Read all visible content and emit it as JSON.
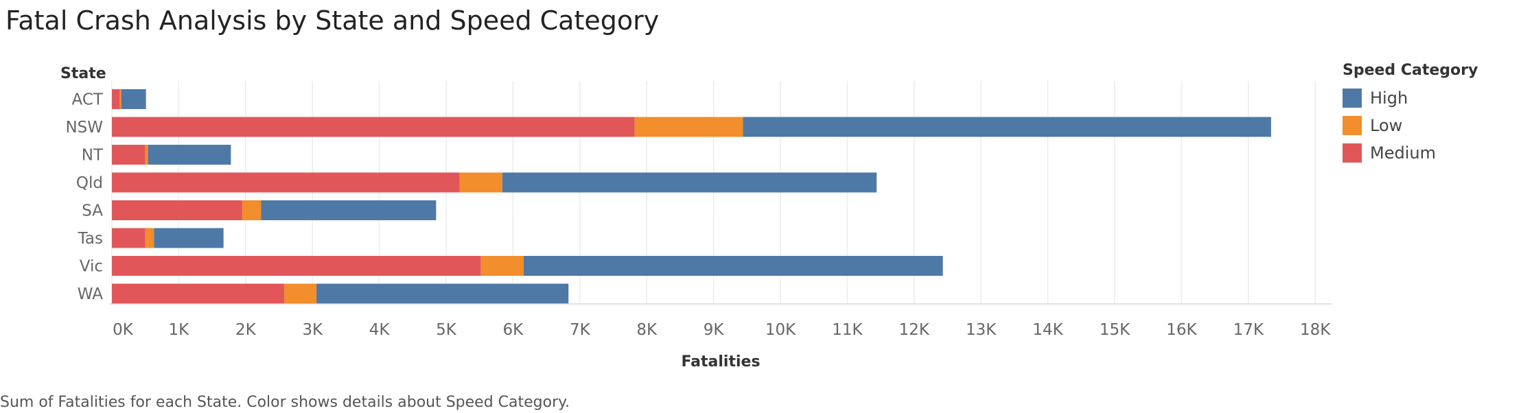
{
  "title": "Fatal Crash Analysis by State and Speed Category",
  "footer": "Sum of Fatalities for each State.  Color shows details about Speed Category.",
  "legend": {
    "title": "Speed Category",
    "items": [
      {
        "label": "High",
        "color": "#4e79a7"
      },
      {
        "label": "Low",
        "color": "#f28e2b"
      },
      {
        "label": "Medium",
        "color": "#e15759"
      }
    ]
  },
  "chart_data": {
    "type": "bar",
    "orientation": "horizontal",
    "stacked": true,
    "title": "Fatal Crash Analysis by State and Speed Category",
    "ylabel": "State",
    "xlabel": "Fatalities",
    "xlim": [
      0,
      18000
    ],
    "xticks": [
      {
        "value": 0,
        "label": "0K"
      },
      {
        "value": 1000,
        "label": "1K"
      },
      {
        "value": 2000,
        "label": "2K"
      },
      {
        "value": 3000,
        "label": "3K"
      },
      {
        "value": 4000,
        "label": "4K"
      },
      {
        "value": 5000,
        "label": "5K"
      },
      {
        "value": 6000,
        "label": "6K"
      },
      {
        "value": 7000,
        "label": "7K"
      },
      {
        "value": 8000,
        "label": "8K"
      },
      {
        "value": 9000,
        "label": "9K"
      },
      {
        "value": 10000,
        "label": "10K"
      },
      {
        "value": 11000,
        "label": "11K"
      },
      {
        "value": 12000,
        "label": "12K"
      },
      {
        "value": 13000,
        "label": "13K"
      },
      {
        "value": 14000,
        "label": "14K"
      },
      {
        "value": 15000,
        "label": "15K"
      },
      {
        "value": 16000,
        "label": "16K"
      },
      {
        "value": 17000,
        "label": "17K"
      },
      {
        "value": 18000,
        "label": "18K"
      }
    ],
    "grid": "vertical",
    "legend_position": "right",
    "categories": [
      "ACT",
      "NSW",
      "NT",
      "Qld",
      "SA",
      "Tas",
      "Vic",
      "WA"
    ],
    "series": [
      {
        "name": "Medium",
        "color": "#e15759",
        "values": [
          120,
          7820,
          500,
          5200,
          1950,
          500,
          5520,
          2580
        ]
      },
      {
        "name": "Low",
        "color": "#f28e2b",
        "values": [
          20,
          1620,
          40,
          640,
          280,
          130,
          640,
          480
        ]
      },
      {
        "name": "High",
        "color": "#4e79a7",
        "values": [
          370,
          7900,
          1240,
          5600,
          2620,
          1040,
          6270,
          3770
        ]
      }
    ]
  }
}
